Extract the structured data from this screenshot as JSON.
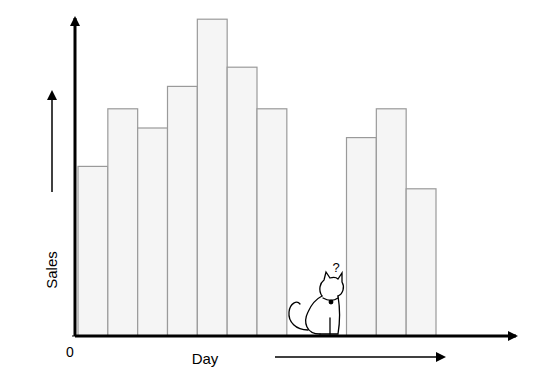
{
  "chart_data": {
    "type": "bar",
    "x_label": "Day",
    "y_label": "Sales",
    "categories": [
      null,
      null,
      null,
      null,
      null,
      null,
      null,
      null,
      null,
      null,
      null,
      null
    ],
    "values": [
      53,
      71,
      65,
      78,
      99,
      84,
      71,
      null,
      null,
      62,
      71,
      46
    ],
    "color": "#f5f5f5",
    "ylim": [
      0,
      100
    ],
    "yticks": [
      0
    ],
    "tick_labels": "y",
    "annotations": [
      "?"
    ]
  }
}
